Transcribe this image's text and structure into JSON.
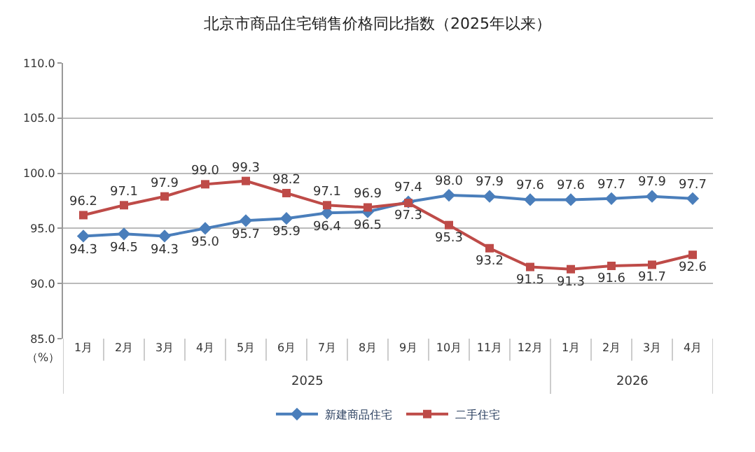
{
  "chart_data": {
    "type": "line",
    "title": "北京市商品住宅销售价格同比指数（2025年以来）",
    "ylabel": "（%）",
    "categories": [
      "1月",
      "2月",
      "3月",
      "4月",
      "5月",
      "6月",
      "7月",
      "8月",
      "9月",
      "10月",
      "11月",
      "12月",
      "1月",
      "2月",
      "3月",
      "4月"
    ],
    "series": [
      {
        "name": "新建商品住宅",
        "color": "#4a7ebb",
        "marker": "diamond",
        "values": [
          94.3,
          94.5,
          94.3,
          95.0,
          95.7,
          95.9,
          96.4,
          96.5,
          97.4,
          98.0,
          97.9,
          97.6,
          97.6,
          97.7,
          97.9,
          97.7
        ],
        "value_labels": [
          "94.3",
          "94.5",
          "94.3",
          "95.0",
          "95.7",
          "95.9",
          "96.4",
          "96.5",
          "97.4",
          "98.0",
          "97.9",
          "97.6",
          "97.6",
          "97.7",
          "97.9",
          "97.7"
        ]
      },
      {
        "name": "二手住宅",
        "color": "#be4b48",
        "marker": "square",
        "values": [
          96.2,
          97.1,
          97.9,
          99.0,
          99.3,
          98.2,
          97.1,
          96.9,
          97.3,
          95.3,
          93.2,
          91.5,
          91.3,
          91.6,
          91.7,
          92.6
        ],
        "value_labels": [
          "96.2",
          "97.1",
          "97.9",
          "99.0",
          "99.3",
          "98.2",
          "97.1",
          "96.9",
          "97.3",
          "95.3",
          "93.2",
          "91.5",
          "91.3",
          "91.6",
          "91.7",
          "92.6"
        ]
      }
    ],
    "annotations": [
      "2025",
      "2026"
    ],
    "ylim": [
      85,
      110
    ],
    "yticks": [
      {
        "value": 85,
        "label": "85.0"
      },
      {
        "value": 90,
        "label": "90.0"
      },
      {
        "value": 95,
        "label": "95.0"
      },
      {
        "value": 100,
        "label": "100.0"
      },
      {
        "value": 105,
        "label": "105.0"
      },
      {
        "value": 110,
        "label": "110.0"
      }
    ],
    "grid": "y",
    "legend": "bottom",
    "line_style": "solid"
  }
}
